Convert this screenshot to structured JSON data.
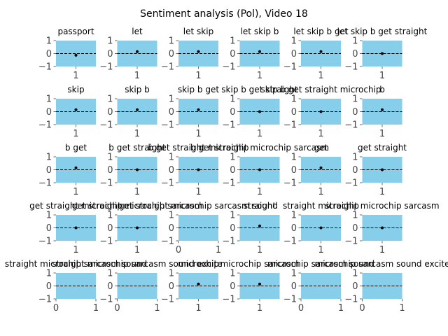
{
  "chart_data": {
    "type": "scatter",
    "title": "Sentiment analysis (Pol), Video 18",
    "ylim": [
      -1,
      1
    ],
    "yticks": [
      1,
      0,
      -1
    ],
    "zero_line": "dashed",
    "colors": {
      "background": "#87ceeb",
      "point": "#000000",
      "zero_line": "#000000",
      "text": "#000000",
      "tick": "#444444"
    },
    "panels": [
      {
        "title": "passport",
        "x": [
          1
        ],
        "y": [
          -0.13
        ],
        "xticks": [
          1
        ]
      },
      {
        "title": "let",
        "x": [
          1
        ],
        "y": [
          0.15
        ],
        "xticks": [
          1
        ]
      },
      {
        "title": "let skip",
        "x": [
          1
        ],
        "y": [
          0.15
        ],
        "xticks": [
          1
        ]
      },
      {
        "title": "let skip b",
        "x": [
          1
        ],
        "y": [
          0.15
        ],
        "xticks": [
          1
        ]
      },
      {
        "title": "let skip b get",
        "x": [
          1
        ],
        "y": [
          0.15
        ],
        "xticks": [
          1
        ]
      },
      {
        "title": "let skip b get straight",
        "x": [
          1
        ],
        "y": [
          0.0
        ],
        "xticks": [
          1
        ]
      },
      {
        "title": "skip",
        "x": [
          1
        ],
        "y": [
          0.15
        ],
        "xticks": [
          1
        ]
      },
      {
        "title": "skip b",
        "x": [
          1
        ],
        "y": [
          0.15
        ],
        "xticks": [
          1
        ]
      },
      {
        "title": "skip b get",
        "x": [
          1
        ],
        "y": [
          0.15
        ],
        "xticks": [
          1
        ]
      },
      {
        "title": "skip b get straight",
        "x": [
          1
        ],
        "y": [
          0.0
        ],
        "xticks": [
          1
        ]
      },
      {
        "title": "skip b get straight microchip",
        "x": [
          1
        ],
        "y": [
          0.0
        ],
        "xticks": [
          1
        ]
      },
      {
        "title": "b",
        "x": [
          1
        ],
        "y": [
          0.15
        ],
        "xticks": [
          1
        ]
      },
      {
        "title": "b get",
        "x": [
          1
        ],
        "y": [
          0.15
        ],
        "xticks": [
          1
        ]
      },
      {
        "title": "b get straight",
        "x": [
          1
        ],
        "y": [
          0.0
        ],
        "xticks": [
          1
        ]
      },
      {
        "title": "b get straight microchip",
        "x": [
          1
        ],
        "y": [
          0.0
        ],
        "xticks": [
          1
        ]
      },
      {
        "title": "b get straight microchip sarcasm",
        "x": [
          1
        ],
        "y": [
          0.0
        ],
        "xticks": [
          1
        ]
      },
      {
        "title": "get",
        "x": [
          1
        ],
        "y": [
          0.15
        ],
        "xticks": [
          1
        ]
      },
      {
        "title": "get straight",
        "x": [
          1
        ],
        "y": [
          0.0
        ],
        "xticks": [
          1
        ]
      },
      {
        "title": "get straight microchip",
        "x": [
          1
        ],
        "y": [
          0.0
        ],
        "xticks": [
          1
        ]
      },
      {
        "title": "get straight microchip sarcasm",
        "x": [
          1
        ],
        "y": [
          0.0
        ],
        "xticks": [
          1
        ]
      },
      {
        "title": "get straight microchip sarcasm sound",
        "x": [],
        "y": [],
        "xticks": [
          0,
          1
        ]
      },
      {
        "title": "straight",
        "x": [
          1
        ],
        "y": [
          0.15
        ],
        "xticks": [
          1
        ]
      },
      {
        "title": "straight microchip",
        "x": [
          1
        ],
        "y": [
          0.0
        ],
        "xticks": [
          1
        ]
      },
      {
        "title": "straight microchip sarcasm",
        "x": [
          1
        ],
        "y": [
          0.0
        ],
        "xticks": [
          1
        ]
      },
      {
        "title": "straight microchip sarcasm sound",
        "x": [],
        "y": [],
        "xticks": [
          0,
          1
        ]
      },
      {
        "title": "straight microchip sarcasm sound excite",
        "x": [],
        "y": [],
        "xticks": [
          0,
          1
        ]
      },
      {
        "title": "microchip",
        "x": [
          1
        ],
        "y": [
          0.15
        ],
        "xticks": [
          1
        ]
      },
      {
        "title": "microchip sarcasm",
        "x": [
          1
        ],
        "y": [
          0.15
        ],
        "xticks": [
          1
        ]
      },
      {
        "title": "microchip sarcasm sound",
        "x": [],
        "y": [],
        "xticks": [
          0,
          1
        ]
      },
      {
        "title": "microchip sarcasm sound excite",
        "x": [],
        "y": [],
        "xticks": [
          0,
          1
        ]
      }
    ]
  }
}
